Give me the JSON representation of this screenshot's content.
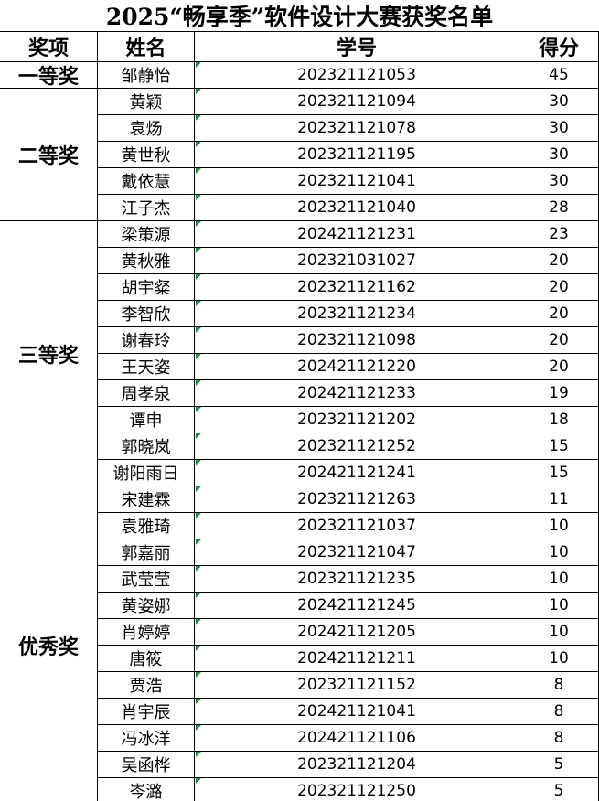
{
  "title": "2025“畅享季”软件设计大赛获奖名单",
  "header": [
    "奖项",
    "姓名",
    "学号",
    "得分"
  ],
  "groups": [
    {
      "award": "一等奖",
      "rows": [
        [
          "邹静怡",
          "202321121053",
          45
        ]
      ]
    },
    {
      "award": "二等奖",
      "rows": [
        [
          "黄颖",
          "202321121094",
          30
        ],
        [
          "袁炀",
          "202321121078",
          30
        ],
        [
          "黄世秋",
          "202321121195",
          30
        ],
        [
          "戴依慧",
          "202321121041",
          30
        ],
        [
          "江子杰",
          "202321121040",
          28
        ]
      ]
    },
    {
      "award": "三等奖",
      "rows": [
        [
          "梁策源",
          "202421121231",
          23
        ],
        [
          "黄秋雅",
          "202321031027",
          20
        ],
        [
          "胡宇粲",
          "202321121162",
          20
        ],
        [
          "李智欣",
          "202321121234",
          20
        ],
        [
          "谢春玲",
          "202321121098",
          20
        ],
        [
          "王天姿",
          "202421121220",
          20
        ],
        [
          "周孝泉",
          "202421121233",
          19
        ],
        [
          "谭申",
          "202321121202",
          18
        ],
        [
          "郭晓岚",
          "202321121252",
          15
        ],
        [
          "谢阳雨日",
          "202421121241",
          15
        ]
      ]
    },
    {
      "award": "优秀奖",
      "rows": [
        [
          "宋建霖",
          "202321121263",
          11
        ],
        [
          "袁雅琦",
          "202321121037",
          10
        ],
        [
          "郭嘉丽",
          "202321121047",
          10
        ],
        [
          "武莹莹",
          "202321121235",
          10
        ],
        [
          "黄姿娜",
          "202421121245",
          10
        ],
        [
          "肖婷婷",
          "202421121205",
          10
        ],
        [
          "唐筱",
          "202421121211",
          10
        ],
        [
          "贾浩",
          "202321121152",
          8
        ],
        [
          "肖宇辰",
          "202421121041",
          8
        ],
        [
          "冯冰洋",
          "202421121106",
          8
        ],
        [
          "吴函桦",
          "202321121204",
          5
        ],
        [
          "岑潞",
          "202321121250",
          5
        ]
      ]
    }
  ]
}
